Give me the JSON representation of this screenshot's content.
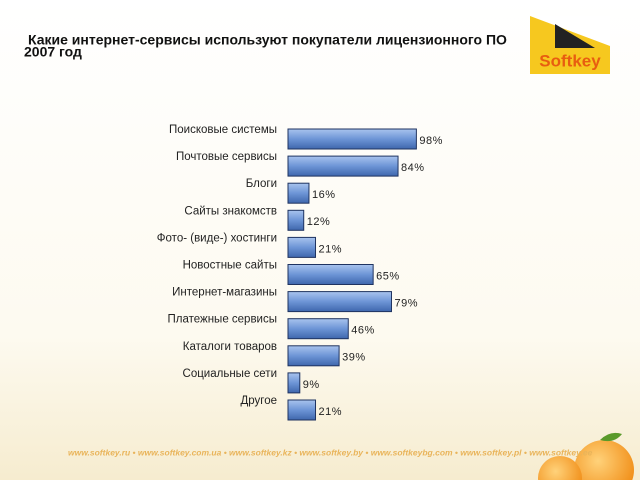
{
  "chart_data": {
    "type": "barh",
    "title": "Какие интернет-сервисы используют покупатели лицензионного ПО",
    "subtitle": "2007 год",
    "categories": [
      "Поисковые системы",
      "Почтовые сервисы",
      "Блоги",
      "Сайты знакомств",
      "Фото- (виде-) хостинги",
      "Новостные сайты",
      "Интернет-магазины",
      "Платежные сервисы",
      "Каталоги товаров",
      "Социальные сети",
      "Другое"
    ],
    "values": [
      98,
      84,
      16,
      12,
      21,
      65,
      79,
      46,
      39,
      9,
      21
    ],
    "value_labels": [
      "98%",
      "84%",
      "16%",
      "12%",
      "21%",
      "65%",
      "79%",
      "46%",
      "39%",
      "9%",
      "21%"
    ],
    "color": "#6d95d6"
  },
  "logo": "Softkey",
  "footer": "www.softkey.ru • www.softkey.com.ua • www.softkey.kz • www.softkey.by • www.softkeybg.com • www.softkey.pl • www.softkey.ee"
}
